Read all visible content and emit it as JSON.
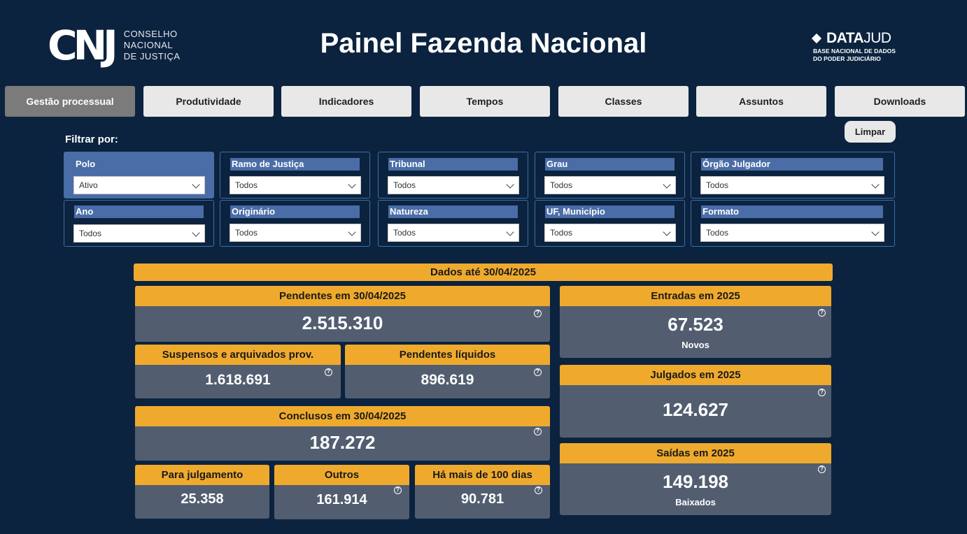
{
  "header": {
    "org_name": [
      "CONSELHO",
      "NACIONAL",
      "DE JUSTIÇA"
    ],
    "logo_text": "CNJ",
    "title": "Painel Fazenda Nacional",
    "datajud_name_bold": "DATA",
    "datajud_name_light": "JUD",
    "datajud_sub_1": "BASE NACIONAL DE DADOS",
    "datajud_sub_2": "DO PODER JUDICIÁRIO"
  },
  "tabs": [
    {
      "label": "Gestão processual",
      "active": true
    },
    {
      "label": "Produtividade"
    },
    {
      "label": "Indicadores"
    },
    {
      "label": "Tempos"
    },
    {
      "label": "Classes"
    },
    {
      "label": "Assuntos"
    },
    {
      "label": "Downloads"
    }
  ],
  "filters": {
    "label": "Filtrar por:",
    "clear_label": "Limpar",
    "items": [
      {
        "title": "Polo",
        "value": "Ativo"
      },
      {
        "title": "Ramo de Justiça",
        "value": "Todos"
      },
      {
        "title": "Tribunal",
        "value": "Todos"
      },
      {
        "title": "Grau",
        "value": "Todos"
      },
      {
        "title": "Órgão Julgador",
        "value": "Todos"
      },
      {
        "title": "Ano",
        "value": "Todos"
      },
      {
        "title": "Originário",
        "value": "Todos"
      },
      {
        "title": "Natureza",
        "value": "Todos"
      },
      {
        "title": "UF, Município",
        "value": "Todos"
      },
      {
        "title": "Formato",
        "value": "Todos"
      }
    ]
  },
  "banner": "Dados até 30/04/2025",
  "cards": {
    "pendentes": {
      "title": "Pendentes em 30/04/2025",
      "value": "2.515.310"
    },
    "suspensos": {
      "title": "Suspensos e arquivados prov.",
      "value": "1.618.691"
    },
    "liquidos": {
      "title": "Pendentes líquidos",
      "value": "896.619"
    },
    "conclusos": {
      "title": "Conclusos em 30/04/2025",
      "value": "187.272"
    },
    "julgamento": {
      "title": "Para julgamento",
      "value": "25.358"
    },
    "outros": {
      "title": "Outros",
      "value": "161.914"
    },
    "mais100": {
      "title": "Há mais de 100 dias",
      "value": "90.781"
    },
    "entradas": {
      "title": "Entradas em 2025",
      "value": "67.523",
      "sub": "Novos"
    },
    "julgados": {
      "title": "Julgados em 2025",
      "value": "124.627"
    },
    "saidas": {
      "title": "Saídas em 2025",
      "value": "149.198",
      "sub": "Baixados"
    }
  },
  "help_glyph": "?"
}
